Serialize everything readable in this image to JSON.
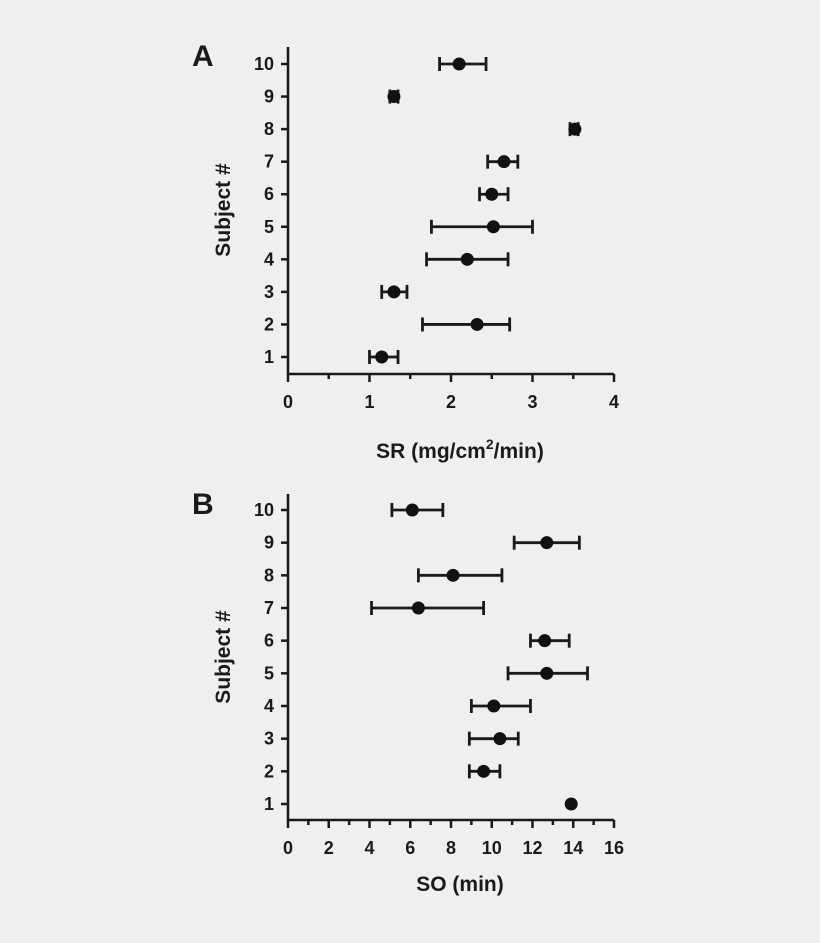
{
  "chart_data": [
    {
      "type": "scatter",
      "panel_label": "A",
      "xlabel": "SR (mg/cm",
      "xlabel_superscript": "2",
      "xlabel_suffix": "/min)",
      "ylabel": "Subject #",
      "xlim": [
        0,
        4
      ],
      "ylim": [
        1,
        10
      ],
      "x_ticks": [
        "0",
        "1",
        "2",
        "3",
        "4"
      ],
      "y_ticks": [
        "1",
        "2",
        "3",
        "4",
        "5",
        "6",
        "7",
        "8",
        "9",
        "10"
      ],
      "grid": false,
      "legend": "none",
      "error_bars": "horizontal",
      "points": [
        {
          "subject": 1,
          "x": 1.15,
          "xerr_low": 1.0,
          "xerr_high": 1.35
        },
        {
          "subject": 2,
          "x": 2.32,
          "xerr_low": 1.65,
          "xerr_high": 2.72
        },
        {
          "subject": 3,
          "x": 1.3,
          "xerr_low": 1.15,
          "xerr_high": 1.46
        },
        {
          "subject": 4,
          "x": 2.2,
          "xerr_low": 1.7,
          "xerr_high": 2.7
        },
        {
          "subject": 5,
          "x": 2.52,
          "xerr_low": 1.76,
          "xerr_high": 3.0
        },
        {
          "subject": 6,
          "x": 2.5,
          "xerr_low": 2.35,
          "xerr_high": 2.7
        },
        {
          "subject": 7,
          "x": 2.65,
          "xerr_low": 2.45,
          "xerr_high": 2.82
        },
        {
          "subject": 8,
          "x": 3.52,
          "xerr_low": 3.46,
          "xerr_high": 3.56
        },
        {
          "subject": 9,
          "x": 1.3,
          "xerr_low": 1.25,
          "xerr_high": 1.35
        },
        {
          "subject": 10,
          "x": 2.1,
          "xerr_low": 1.86,
          "xerr_high": 2.43
        }
      ]
    },
    {
      "type": "scatter",
      "panel_label": "B",
      "xlabel": "SO (min)",
      "ylabel": "Subject #",
      "xlim": [
        0,
        16
      ],
      "ylim": [
        1,
        10
      ],
      "x_ticks": [
        "0",
        "2",
        "4",
        "6",
        "8",
        "10",
        "12",
        "14",
        "16"
      ],
      "y_ticks": [
        "1",
        "2",
        "3",
        "4",
        "5",
        "6",
        "7",
        "8",
        "9",
        "10"
      ],
      "grid": false,
      "legend": "none",
      "error_bars": "horizontal",
      "points": [
        {
          "subject": 1,
          "x": 13.9,
          "xerr_low": 13.9,
          "xerr_high": 13.9
        },
        {
          "subject": 2,
          "x": 9.6,
          "xerr_low": 8.9,
          "xerr_high": 10.4
        },
        {
          "subject": 3,
          "x": 10.4,
          "xerr_low": 8.9,
          "xerr_high": 11.3
        },
        {
          "subject": 4,
          "x": 10.1,
          "xerr_low": 9.0,
          "xerr_high": 11.9
        },
        {
          "subject": 5,
          "x": 12.7,
          "xerr_low": 10.8,
          "xerr_high": 14.7
        },
        {
          "subject": 6,
          "x": 12.6,
          "xerr_low": 11.9,
          "xerr_high": 13.8
        },
        {
          "subject": 7,
          "x": 6.4,
          "xerr_low": 4.1,
          "xerr_high": 9.6
        },
        {
          "subject": 8,
          "x": 8.1,
          "xerr_low": 6.4,
          "xerr_high": 10.5
        },
        {
          "subject": 9,
          "x": 12.7,
          "xerr_low": 11.1,
          "xerr_high": 14.3
        },
        {
          "subject": 10,
          "x": 6.1,
          "xerr_low": 5.1,
          "xerr_high": 7.6
        }
      ]
    }
  ]
}
